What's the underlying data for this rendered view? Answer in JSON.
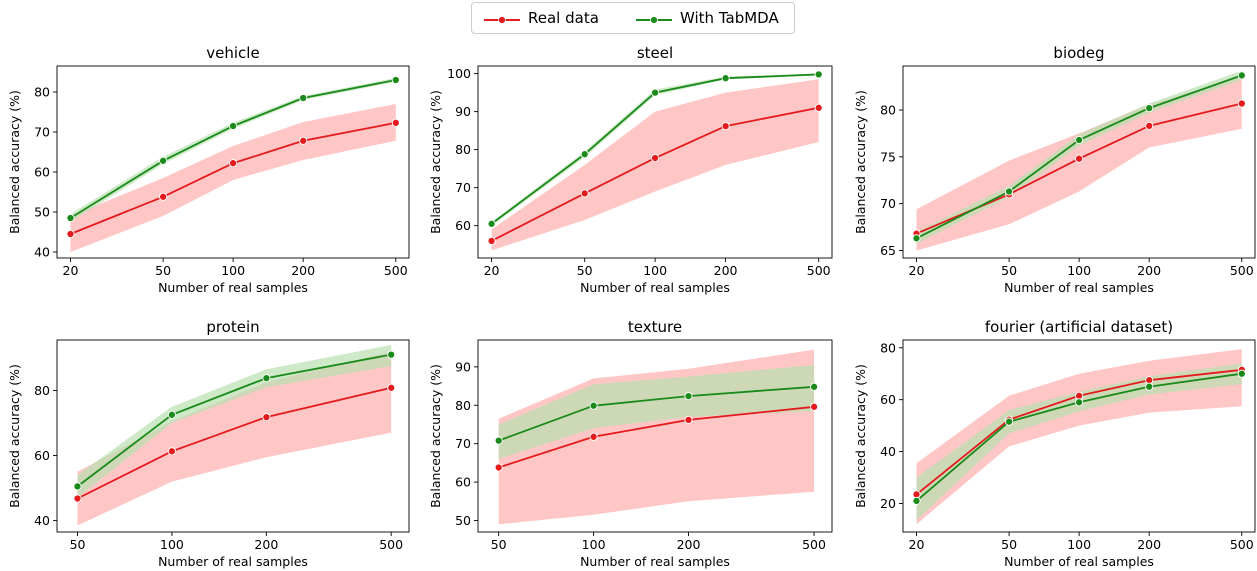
{
  "legend": {
    "real_label": "Real data",
    "tab_label": "With TabMDA"
  },
  "colors": {
    "real_line": "#e41a1c",
    "real_band": "#ffb3b3",
    "tab_line": "#1a8a1a",
    "tab_band": "#b8e0b0",
    "overlap": "#b9a07a"
  },
  "chart_data": [
    {
      "type": "line",
      "title": "vehicle",
      "xlabel": "Number of real samples",
      "ylabel": "Balanced accuracy (%)",
      "xscale": "log",
      "x": [
        20,
        50,
        100,
        200,
        500
      ],
      "ylim": [
        38.5,
        86.5
      ],
      "yticks": [
        40,
        50,
        60,
        70,
        80
      ],
      "series": [
        {
          "name": "Real data",
          "values": [
            44.5,
            53.8,
            62.2,
            67.8,
            72.3
          ],
          "lower": [
            40.0,
            49.0,
            58.0,
            63.0,
            67.8
          ],
          "upper": [
            49.0,
            58.5,
            66.5,
            72.5,
            77.0
          ]
        },
        {
          "name": "With TabMDA",
          "values": [
            48.5,
            62.8,
            71.5,
            78.5,
            83.0
          ],
          "lower": [
            47.5,
            62.0,
            70.8,
            78.0,
            82.5
          ],
          "upper": [
            49.5,
            63.8,
            72.3,
            79.0,
            83.5
          ]
        }
      ]
    },
    {
      "type": "line",
      "title": "steel",
      "xlabel": "Number of real samples",
      "ylabel": "Balanced accuracy (%)",
      "xscale": "log",
      "x": [
        20,
        50,
        100,
        200,
        500
      ],
      "ylim": [
        51.5,
        102
      ],
      "yticks": [
        60,
        70,
        80,
        90,
        100
      ],
      "series": [
        {
          "name": "Real data",
          "values": [
            56.0,
            68.5,
            77.8,
            86.2,
            91.0
          ],
          "lower": [
            53.5,
            61.5,
            69.0,
            76.0,
            82.0
          ],
          "upper": [
            59.0,
            76.0,
            90.0,
            95.0,
            98.5
          ]
        },
        {
          "name": "With TabMDA",
          "values": [
            60.5,
            78.8,
            95.0,
            98.8,
            99.8
          ],
          "lower": [
            60.0,
            78.0,
            94.3,
            98.5,
            99.5
          ],
          "upper": [
            61.0,
            79.5,
            95.8,
            99.2,
            100.0
          ]
        }
      ]
    },
    {
      "type": "line",
      "title": "biodeg",
      "xlabel": "Number of real samples",
      "ylabel": "Balanced accuracy (%)",
      "xscale": "log",
      "x": [
        20,
        50,
        100,
        200,
        500
      ],
      "ylim": [
        64.2,
        84.7
      ],
      "yticks": [
        65,
        70,
        75,
        80
      ],
      "series": [
        {
          "name": "Real data",
          "values": [
            66.8,
            71.0,
            74.8,
            78.3,
            80.7
          ],
          "lower": [
            65.0,
            67.8,
            71.3,
            76.0,
            78.0
          ],
          "upper": [
            69.4,
            74.6,
            77.5,
            80.6,
            83.5
          ]
        },
        {
          "name": "With TabMDA",
          "values": [
            66.3,
            71.3,
            76.8,
            80.2,
            83.7
          ],
          "lower": [
            65.7,
            70.7,
            76.2,
            79.7,
            83.2
          ],
          "upper": [
            67.0,
            71.9,
            77.4,
            80.7,
            84.2
          ]
        }
      ]
    },
    {
      "type": "line",
      "title": "protein",
      "xlabel": "Number of real samples",
      "ylabel": "Balanced accuracy (%)",
      "xscale": "log",
      "x": [
        50,
        100,
        200,
        500
      ],
      "ylim": [
        36.5,
        95.5
      ],
      "yticks": [
        40,
        60,
        80
      ],
      "series": [
        {
          "name": "Real data",
          "values": [
            46.8,
            61.3,
            71.8,
            80.8
          ],
          "lower": [
            38.5,
            52.0,
            59.5,
            67.0
          ],
          "upper": [
            55.0,
            70.5,
            82.5,
            92.0
          ]
        },
        {
          "name": "With TabMDA",
          "values": [
            50.5,
            72.5,
            83.8,
            91.0
          ],
          "lower": [
            47.0,
            70.0,
            81.0,
            87.5
          ],
          "upper": [
            54.0,
            75.0,
            86.5,
            94.0
          ]
        }
      ]
    },
    {
      "type": "line",
      "title": "texture",
      "xlabel": "Number of real samples",
      "ylabel": "Balanced accuracy (%)",
      "xscale": "log",
      "x": [
        50,
        100,
        200,
        500
      ],
      "ylim": [
        47,
        97
      ],
      "yticks": [
        50,
        60,
        70,
        80,
        90
      ],
      "series": [
        {
          "name": "Real data",
          "values": [
            63.8,
            71.8,
            76.2,
            79.6
          ],
          "lower": [
            49.0,
            51.5,
            55.0,
            57.5
          ],
          "upper": [
            76.5,
            87.0,
            89.5,
            94.5
          ]
        },
        {
          "name": "With TabMDA",
          "values": [
            70.8,
            79.9,
            82.4,
            84.8
          ],
          "lower": [
            66.0,
            74.0,
            77.0,
            78.5
          ],
          "upper": [
            75.0,
            85.5,
            87.5,
            90.5
          ]
        }
      ]
    },
    {
      "type": "line",
      "title": "fourier (artificial dataset)",
      "xlabel": "Number of real samples",
      "ylabel": "Balanced accuracy (%)",
      "xscale": "log",
      "x": [
        20,
        50,
        100,
        200,
        500
      ],
      "ylim": [
        9,
        83
      ],
      "yticks": [
        20,
        40,
        60,
        80
      ],
      "series": [
        {
          "name": "Real data",
          "values": [
            23.5,
            52.3,
            61.5,
            67.5,
            71.5
          ],
          "lower": [
            12.0,
            42.0,
            50.0,
            55.0,
            57.5
          ],
          "upper": [
            35.5,
            61.5,
            70.0,
            75.0,
            79.5
          ]
        },
        {
          "name": "With TabMDA",
          "values": [
            21.0,
            51.5,
            59.0,
            65.0,
            70.0
          ],
          "lower": [
            13.5,
            47.0,
            55.5,
            62.0,
            66.0
          ],
          "upper": [
            30.0,
            56.0,
            63.0,
            69.0,
            74.0
          ]
        }
      ]
    }
  ]
}
